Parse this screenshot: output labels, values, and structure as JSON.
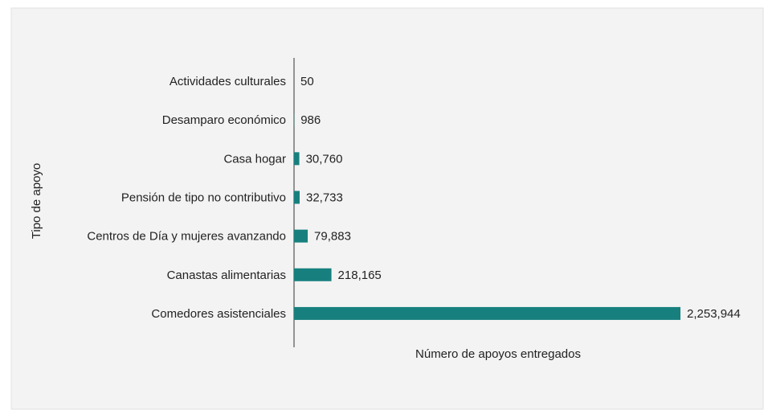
{
  "chart_data": {
    "type": "barh",
    "categories": [
      "Actividades culturales",
      "Desamparo económico",
      "Casa hogar",
      "Pensión de tipo no contributivo",
      "Centros de Día y mujeres avanzando",
      "Canastas alimentarias",
      "Comedores asistenciales"
    ],
    "values": [
      50,
      986,
      30760,
      32733,
      79883,
      218165,
      2253944
    ],
    "value_labels": [
      "50",
      "986",
      "30,760",
      "32,733",
      "79,883",
      "218,165",
      "2,253,944"
    ],
    "color": "#17807e",
    "xlim": [
      0,
      2253944
    ],
    "xlabel": "Número de apoyos entregados",
    "ylabel": "Tipo de apoyo"
  }
}
